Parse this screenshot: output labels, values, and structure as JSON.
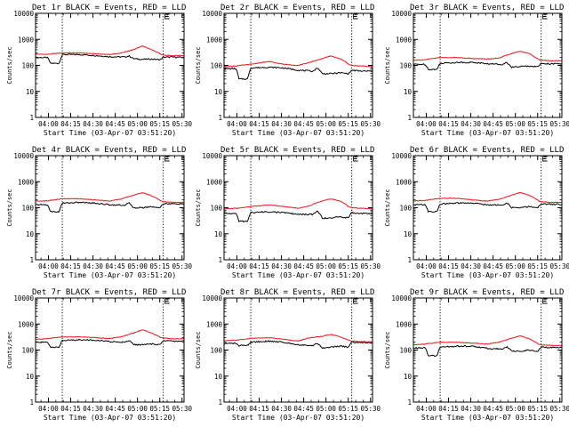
{
  "figure": {
    "title_suffix": "BLACK = Events, RED = LLD",
    "y_axis_label": "Counts/sec",
    "x_axis_label": "Start Time (03-Apr-07 03:51:20)",
    "y_ticks": [
      "1",
      "10",
      "100",
      "1000",
      "10000"
    ],
    "x_ticks": [
      "04:00",
      "04:15",
      "04:30",
      "04:45",
      "05:00",
      "05:15",
      "05:30"
    ],
    "colors": {
      "events": "#000000",
      "lld": "#e8262a",
      "axes": "#000000",
      "background": "#ffffff"
    }
  },
  "chart_data": [
    {
      "type": "line",
      "title": "Det 1r BLACK = Events, RED = LLD",
      "detector": "1r",
      "xlabel": "Start Time (03-Apr-07 03:51:20)",
      "ylabel": "Counts/sec",
      "yscale": "log",
      "ylim": [
        1,
        10000
      ],
      "xlim_minutes": [
        0,
        100
      ],
      "x_tick_labels": [
        "04:00",
        "04:15",
        "04:30",
        "04:45",
        "05:00",
        "05:15",
        "05:30"
      ],
      "saa_markers_minutes": [
        18,
        86
      ],
      "series": [
        {
          "name": "Events",
          "color": "#000000",
          "x": [
            0,
            8,
            10,
            16,
            18,
            30,
            40,
            50,
            60,
            63,
            66,
            72,
            78,
            84,
            86,
            92,
            100
          ],
          "y": [
            200,
            200,
            120,
            120,
            260,
            260,
            240,
            215,
            210,
            230,
            180,
            170,
            175,
            165,
            205,
            210,
            200
          ]
        },
        {
          "name": "LLD",
          "color": "#e8262a",
          "x": [
            0,
            8,
            18,
            30,
            40,
            50,
            58,
            66,
            72,
            78,
            84,
            86,
            92,
            100
          ],
          "y": [
            270,
            265,
            300,
            300,
            280,
            260,
            300,
            400,
            550,
            400,
            280,
            250,
            240,
            240
          ]
        }
      ]
    },
    {
      "type": "line",
      "title": "Det 2r BLACK = Events, RED = LLD",
      "detector": "2r",
      "xlabel": "Start Time (03-Apr-07 03:51:20)",
      "ylabel": "Counts/sec",
      "yscale": "log",
      "ylim": [
        1,
        10000
      ],
      "xlim_minutes": [
        0,
        100
      ],
      "x_tick_labels": [
        "04:00",
        "04:15",
        "04:30",
        "04:45",
        "05:00",
        "05:15",
        "05:30"
      ],
      "saa_markers_minutes": [
        18,
        86
      ],
      "series": [
        {
          "name": "Events",
          "color": "#000000",
          "x": [
            0,
            8,
            10,
            16,
            18,
            30,
            40,
            50,
            60,
            63,
            66,
            72,
            78,
            84,
            86,
            92,
            100
          ],
          "y": [
            75,
            75,
            30,
            30,
            80,
            85,
            80,
            65,
            60,
            80,
            48,
            48,
            52,
            48,
            65,
            60,
            60
          ]
        },
        {
          "name": "LLD",
          "color": "#e8262a",
          "x": [
            0,
            8,
            18,
            30,
            40,
            50,
            58,
            66,
            72,
            78,
            84,
            86,
            92,
            100
          ],
          "y": [
            90,
            95,
            110,
            140,
            110,
            100,
            130,
            180,
            230,
            180,
            110,
            100,
            95,
            90
          ]
        }
      ]
    },
    {
      "type": "line",
      "title": "Det 3r BLACK = Events, RED = LLD",
      "detector": "3r",
      "xlabel": "Start Time (03-Apr-07 03:51:20)",
      "ylabel": "Counts/sec",
      "yscale": "log",
      "ylim": [
        1,
        10000
      ],
      "xlim_minutes": [
        0,
        100
      ],
      "x_tick_labels": [
        "04:00",
        "04:15",
        "04:30",
        "04:45",
        "05:00",
        "05:15",
        "05:30"
      ],
      "saa_markers_minutes": [
        18,
        86
      ],
      "series": [
        {
          "name": "Events",
          "color": "#000000",
          "x": [
            0,
            8,
            10,
            16,
            18,
            30,
            40,
            50,
            60,
            63,
            66,
            72,
            78,
            84,
            86,
            92,
            100
          ],
          "y": [
            110,
            110,
            70,
            70,
            120,
            130,
            130,
            115,
            110,
            130,
            85,
            90,
            95,
            88,
            120,
            115,
            115
          ]
        },
        {
          "name": "LLD",
          "color": "#e8262a",
          "x": [
            0,
            8,
            18,
            30,
            40,
            50,
            58,
            66,
            72,
            78,
            84,
            86,
            92,
            100
          ],
          "y": [
            160,
            165,
            200,
            200,
            185,
            175,
            190,
            280,
            350,
            280,
            170,
            160,
            150,
            150
          ]
        }
      ]
    },
    {
      "type": "line",
      "title": "Det 4r BLACK = Events, RED = LLD",
      "detector": "4r",
      "xlabel": "Start Time (03-Apr-07 03:51:20)",
      "ylabel": "Counts/sec",
      "yscale": "log",
      "ylim": [
        1,
        10000
      ],
      "xlim_minutes": [
        0,
        100
      ],
      "x_tick_labels": [
        "04:00",
        "04:15",
        "04:30",
        "04:45",
        "05:00",
        "05:15",
        "05:30"
      ],
      "saa_markers_minutes": [
        18,
        86
      ],
      "series": [
        {
          "name": "Events",
          "color": "#000000",
          "x": [
            0,
            8,
            10,
            16,
            18,
            30,
            40,
            50,
            60,
            63,
            66,
            72,
            78,
            84,
            86,
            92,
            100
          ],
          "y": [
            130,
            130,
            70,
            70,
            150,
            160,
            150,
            130,
            125,
            150,
            100,
            100,
            110,
            100,
            145,
            140,
            140
          ]
        },
        {
          "name": "LLD",
          "color": "#e8262a",
          "x": [
            0,
            8,
            18,
            30,
            40,
            50,
            58,
            66,
            72,
            78,
            84,
            86,
            92,
            100
          ],
          "y": [
            180,
            185,
            220,
            220,
            200,
            180,
            220,
            300,
            380,
            290,
            190,
            170,
            160,
            160
          ]
        }
      ]
    },
    {
      "type": "line",
      "title": "Det 5r BLACK = Events, RED = LLD",
      "detector": "5r",
      "xlabel": "Start Time (03-Apr-07 03:51:20)",
      "ylabel": "Counts/sec",
      "yscale": "log",
      "ylim": [
        1,
        10000
      ],
      "xlim_minutes": [
        0,
        100
      ],
      "x_tick_labels": [
        "04:00",
        "04:15",
        "04:30",
        "04:45",
        "05:00",
        "05:15",
        "05:30"
      ],
      "saa_markers_minutes": [
        18,
        86
      ],
      "series": [
        {
          "name": "Events",
          "color": "#000000",
          "x": [
            0,
            8,
            10,
            16,
            18,
            30,
            40,
            50,
            60,
            63,
            66,
            72,
            78,
            84,
            86,
            92,
            100
          ],
          "y": [
            60,
            60,
            30,
            30,
            65,
            70,
            65,
            55,
            55,
            75,
            40,
            40,
            45,
            40,
            65,
            60,
            60
          ]
        },
        {
          "name": "LLD",
          "color": "#e8262a",
          "x": [
            0,
            8,
            18,
            30,
            40,
            50,
            58,
            66,
            72,
            78,
            84,
            86,
            92,
            100
          ],
          "y": [
            90,
            95,
            110,
            130,
            110,
            95,
            120,
            180,
            220,
            180,
            110,
            100,
            95,
            90
          ]
        }
      ]
    },
    {
      "type": "line",
      "title": "Det 6r BLACK = Events, RED = LLD",
      "detector": "6r",
      "xlabel": "Start Time (03-Apr-07 03:51:20)",
      "ylabel": "Counts/sec",
      "yscale": "log",
      "ylim": [
        1,
        10000
      ],
      "xlim_minutes": [
        0,
        100
      ],
      "x_tick_labels": [
        "04:00",
        "04:15",
        "04:30",
        "04:45",
        "05:00",
        "05:15",
        "05:30"
      ],
      "saa_markers_minutes": [
        18,
        86
      ],
      "series": [
        {
          "name": "Events",
          "color": "#000000",
          "x": [
            0,
            8,
            10,
            16,
            18,
            30,
            40,
            50,
            60,
            63,
            66,
            72,
            78,
            84,
            86,
            92,
            100
          ],
          "y": [
            130,
            130,
            70,
            70,
            140,
            150,
            150,
            130,
            125,
            150,
            100,
            100,
            110,
            100,
            140,
            135,
            135
          ]
        },
        {
          "name": "LLD",
          "color": "#e8262a",
          "x": [
            0,
            8,
            18,
            30,
            40,
            50,
            58,
            66,
            72,
            78,
            84,
            86,
            92,
            100
          ],
          "y": [
            180,
            190,
            230,
            230,
            200,
            180,
            210,
            300,
            380,
            300,
            190,
            170,
            160,
            160
          ]
        }
      ]
    },
    {
      "type": "line",
      "title": "Det 7r BLACK = Events, RED = LLD",
      "detector": "7r",
      "xlabel": "Start Time (03-Apr-07 03:51:20)",
      "ylabel": "Counts/sec",
      "yscale": "log",
      "ylim": [
        1,
        10000
      ],
      "xlim_minutes": [
        0,
        100
      ],
      "x_tick_labels": [
        "04:00",
        "04:15",
        "04:30",
        "04:45",
        "05:00",
        "05:15",
        "05:30"
      ],
      "saa_markers_minutes": [
        18,
        86
      ],
      "series": [
        {
          "name": "Events",
          "color": "#000000",
          "x": [
            0,
            8,
            10,
            16,
            18,
            30,
            40,
            50,
            60,
            63,
            66,
            72,
            78,
            84,
            86,
            92,
            100
          ],
          "y": [
            200,
            200,
            130,
            130,
            230,
            250,
            240,
            210,
            200,
            240,
            160,
            160,
            170,
            160,
            230,
            220,
            220
          ]
        },
        {
          "name": "LLD",
          "color": "#e8262a",
          "x": [
            0,
            8,
            18,
            30,
            40,
            50,
            58,
            66,
            72,
            78,
            84,
            86,
            92,
            100
          ],
          "y": [
            260,
            270,
            320,
            320,
            300,
            280,
            320,
            450,
            600,
            450,
            310,
            290,
            270,
            270
          ]
        }
      ]
    },
    {
      "type": "line",
      "title": "Det 8r BLACK = Events, RED = LLD",
      "detector": "8r",
      "xlabel": "Start Time (03-Apr-07 03:51:20)",
      "ylabel": "Counts/sec",
      "yscale": "log",
      "ylim": [
        1,
        10000
      ],
      "xlim_minutes": [
        0,
        100
      ],
      "x_tick_labels": [
        "04:00",
        "04:15",
        "04:30",
        "04:45",
        "05:00",
        "05:15",
        "05:30"
      ],
      "saa_markers_minutes": [
        18,
        86
      ],
      "series": [
        {
          "name": "Events",
          "color": "#000000",
          "x": [
            0,
            8,
            10,
            16,
            18,
            30,
            40,
            50,
            60,
            63,
            66,
            72,
            78,
            84,
            86,
            92,
            100
          ],
          "y": [
            180,
            180,
            150,
            150,
            200,
            220,
            200,
            160,
            150,
            180,
            120,
            130,
            140,
            130,
            200,
            190,
            190
          ]
        },
        {
          "name": "LLD",
          "color": "#e8262a",
          "x": [
            0,
            8,
            18,
            30,
            40,
            50,
            58,
            66,
            72,
            78,
            84,
            86,
            92,
            100
          ],
          "y": [
            230,
            240,
            280,
            300,
            260,
            220,
            300,
            330,
            400,
            320,
            240,
            220,
            210,
            210
          ]
        }
      ]
    },
    {
      "type": "line",
      "title": "Det 9r BLACK = Events, RED = LLD",
      "detector": "9r",
      "xlabel": "Start Time (03-Apr-07 03:51:20)",
      "ylabel": "Counts/sec",
      "yscale": "log",
      "ylim": [
        1,
        10000
      ],
      "xlim_minutes": [
        0,
        100
      ],
      "x_tick_labels": [
        "04:00",
        "04:15",
        "04:30",
        "04:45",
        "05:00",
        "05:15",
        "05:30"
      ],
      "saa_markers_minutes": [
        18,
        86
      ],
      "series": [
        {
          "name": "Events",
          "color": "#000000",
          "x": [
            0,
            8,
            10,
            16,
            18,
            30,
            40,
            50,
            60,
            63,
            66,
            72,
            78,
            84,
            86,
            92,
            100
          ],
          "y": [
            120,
            120,
            60,
            60,
            130,
            140,
            140,
            115,
            110,
            135,
            90,
            90,
            100,
            90,
            130,
            125,
            125
          ]
        },
        {
          "name": "LLD",
          "color": "#e8262a",
          "x": [
            0,
            8,
            18,
            30,
            40,
            50,
            58,
            66,
            72,
            78,
            84,
            86,
            92,
            100
          ],
          "y": [
            160,
            170,
            200,
            200,
            185,
            170,
            200,
            280,
            350,
            270,
            170,
            160,
            150,
            150
          ]
        }
      ]
    }
  ]
}
